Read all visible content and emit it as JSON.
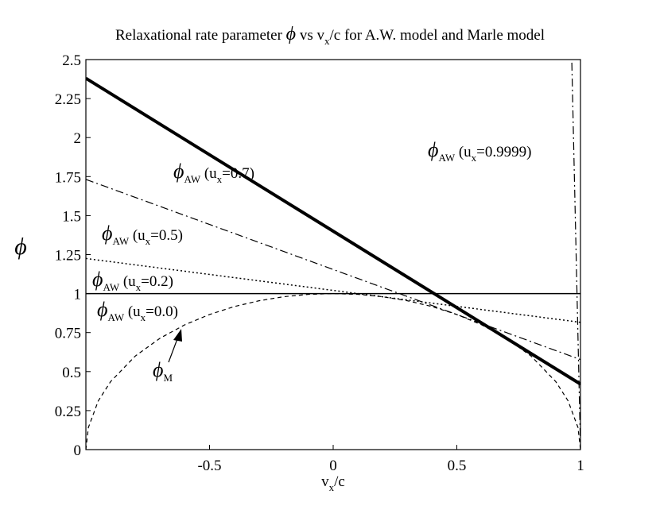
{
  "chart_data": {
    "type": "line",
    "title_parts": [
      "Relaxational rate parameter ",
      "ϕ",
      " vs v",
      "x",
      "/c for A.W. model and Marle model"
    ],
    "x_label_parts": [
      "v",
      "x",
      "/c"
    ],
    "y_label": "ϕ",
    "xlim": [
      -1,
      1
    ],
    "ylim": [
      0,
      2.5
    ],
    "xticks": [
      -0.5,
      0,
      0.5,
      1
    ],
    "yticks": [
      0,
      0.25,
      0.5,
      0.75,
      1,
      1.25,
      1.5,
      1.75,
      2,
      2.25,
      2.5
    ],
    "series": [
      {
        "color": "#000000",
        "line_style": "solid",
        "width": 1.5,
        "x": [
          -1,
          1
        ],
        "values": [
          1,
          1
        ]
      },
      {
        "color": "#000000",
        "line_style": "dotted",
        "width": 1.5,
        "x": [
          -1,
          1
        ],
        "values": [
          1.225,
          0.816
        ]
      },
      {
        "color": "#000000",
        "line_style": "dashdot",
        "width": 1.2,
        "x": [
          -1,
          1
        ],
        "values": [
          1.732,
          0.577
        ]
      },
      {
        "color": "#000000",
        "line_style": "solid",
        "width": 4,
        "x": [
          -1,
          1
        ],
        "values": [
          2.38,
          0.42
        ]
      },
      {
        "color": "#000000",
        "line_style": "dashdot",
        "width": 1.2,
        "x": [
          0.965,
          1
        ],
        "values": [
          2.48,
          0.007
        ]
      },
      {
        "color": "#000000",
        "line_style": "dashed",
        "width": 1.2,
        "x": [
          -1,
          -0.99,
          -0.95,
          -0.9,
          -0.8,
          -0.7,
          -0.6,
          -0.5,
          -0.4,
          -0.3,
          -0.2,
          -0.1,
          0,
          0.1,
          0.2,
          0.3,
          0.4,
          0.5,
          0.6,
          0.7,
          0.8,
          0.9,
          0.95,
          0.99,
          1
        ],
        "values": [
          0,
          0.141,
          0.312,
          0.436,
          0.6,
          0.714,
          0.8,
          0.866,
          0.917,
          0.954,
          0.98,
          0.995,
          1,
          0.995,
          0.98,
          0.954,
          0.917,
          0.866,
          0.8,
          0.714,
          0.6,
          0.436,
          0.312,
          0.141,
          0
        ]
      }
    ],
    "annotations": [
      {
        "parts": [
          "ϕ",
          "AW",
          " (u",
          "x",
          "=0.7)"
        ]
      },
      {
        "parts": [
          "ϕ",
          "AW",
          " (u",
          "x",
          "=0.5)"
        ]
      },
      {
        "parts": [
          "ϕ",
          "AW",
          " (u",
          "x",
          "=0.2)"
        ]
      },
      {
        "parts": [
          "ϕ",
          "AW",
          " (u",
          "x",
          "=0.0)"
        ]
      },
      {
        "parts": [
          "ϕ",
          "AW",
          " (u",
          "x",
          "=0.9999)"
        ]
      },
      {
        "parts": [
          "ϕ",
          "M"
        ]
      }
    ]
  }
}
